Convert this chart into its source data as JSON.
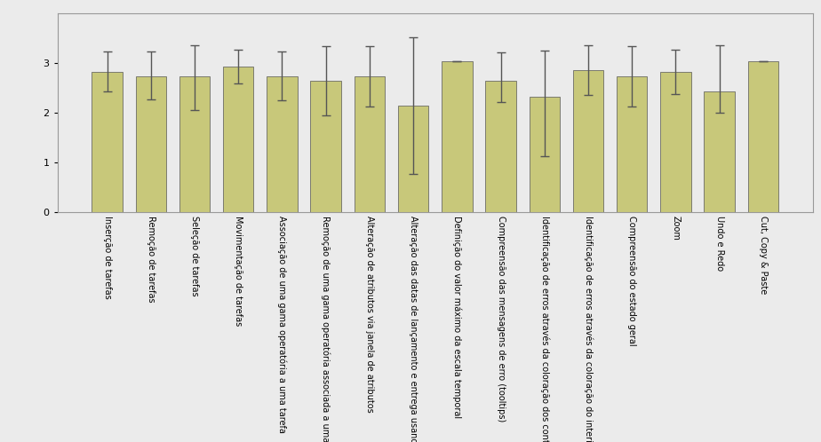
{
  "categories": [
    "Inserção de tarefas",
    "Remoção de tarefas",
    "Seleção de tarefas",
    "Movimentação de tarefas",
    "Associação de uma gama operatória a uma tarefa",
    "Remoção de uma gama operatória associada a uma tarefa",
    "Alteração de atributos via janela de atributos",
    "Alteração das datas de lançamento e entrega usando o rato",
    "Definição do valor máximo da escala temporal",
    "Compreensão das mensagens de erro (tooltips)",
    "Identificação de erros através da coloração dos contornos dos objetos",
    "Identificação de erros através da coloração do interior dos objetos",
    "Compreensão do estado geral",
    "Zoom",
    "Undo e Redo",
    "Cut, Copy & Paste"
  ],
  "means": [
    2.82,
    2.73,
    2.73,
    2.93,
    2.73,
    2.64,
    2.73,
    2.14,
    3.04,
    2.64,
    2.32,
    2.86,
    2.73,
    2.82,
    2.43,
    3.04
  ],
  "errors_upper": [
    0.41,
    0.5,
    0.62,
    0.34,
    0.5,
    0.7,
    0.6,
    1.37,
    0.0,
    0.57,
    0.93,
    0.5,
    0.61,
    0.45,
    0.93,
    0.0
  ],
  "errors_lower": [
    0.39,
    0.46,
    0.68,
    0.34,
    0.48,
    0.7,
    0.6,
    1.37,
    0.0,
    0.43,
    1.2,
    0.5,
    0.61,
    0.45,
    0.43,
    0.0
  ],
  "bar_color": "#C8C87A",
  "bar_edge_color": "#555555",
  "error_color": "#555555",
  "plot_bg_color": "#EBEBEB",
  "fig_bg_color": "#EBEBEB",
  "ylim": [
    0,
    4
  ],
  "yticks": [
    0,
    1,
    2,
    3
  ],
  "label_fontsize": 7,
  "tick_fontsize": 8
}
